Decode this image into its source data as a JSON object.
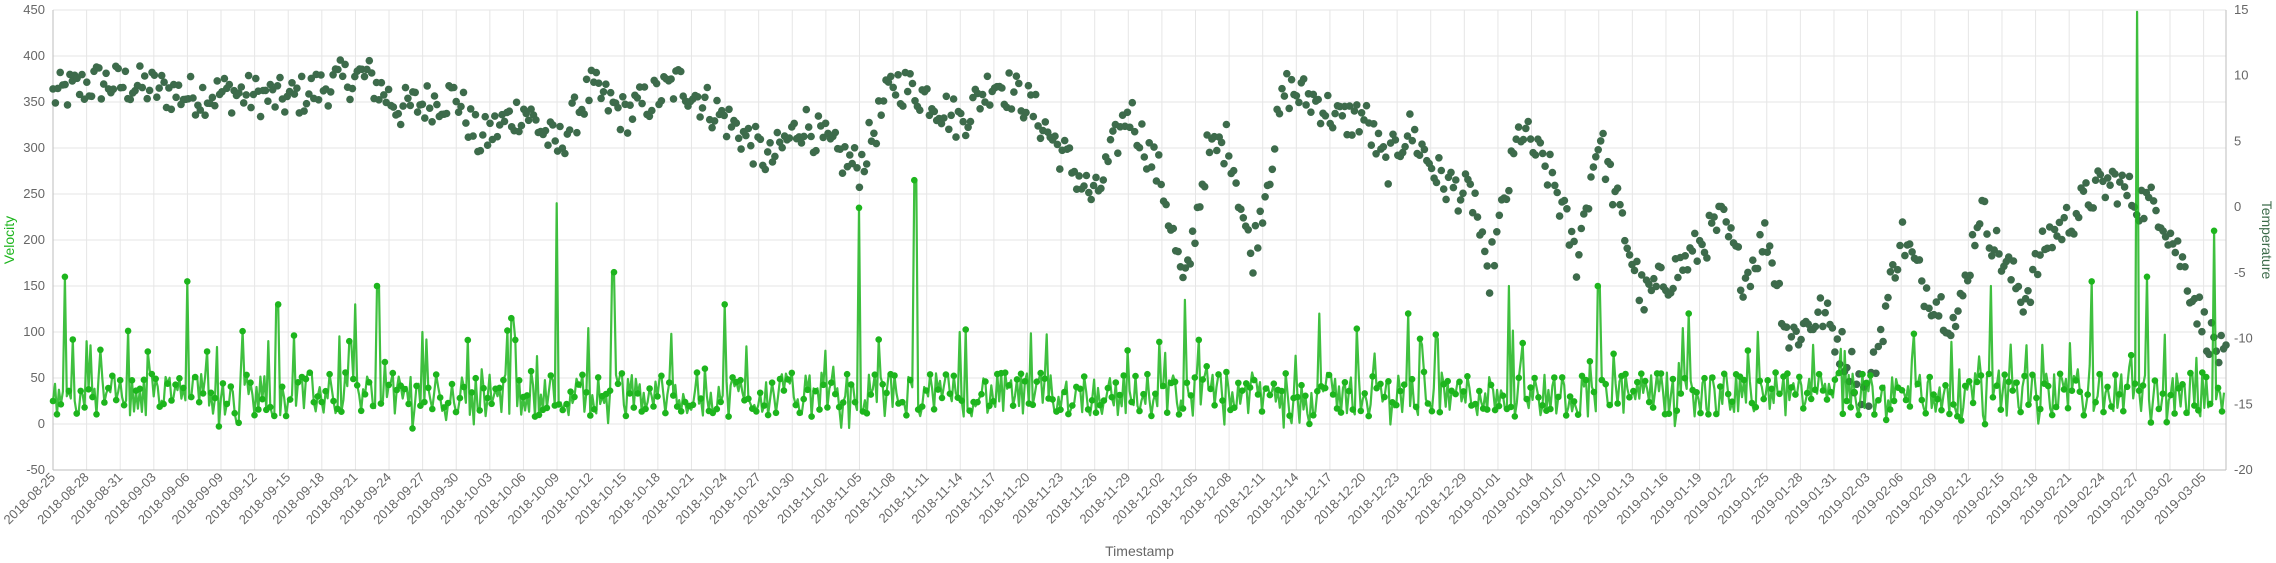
{
  "chart_data": {
    "type": "line",
    "title": "",
    "xlabel": "Timestamp",
    "ylabel": "Velocity",
    "y2label": "Temperature",
    "ylim": [
      -50,
      450
    ],
    "y2lim": [
      -20,
      15
    ],
    "yticks": [
      "450",
      "400",
      "350",
      "300",
      "250",
      "200",
      "150",
      "100",
      "50",
      "0",
      "-50"
    ],
    "y2ticks": [
      "15",
      "10",
      "5",
      "0",
      "-5",
      "-10",
      "-15",
      "-20"
    ],
    "x_start": "2018-08-25",
    "x_end": "2019-03-07",
    "x_tick_labels": [
      "2018-08-25",
      "2018-08-28",
      "2018-08-31",
      "2018-09-03",
      "2018-09-06",
      "2018-09-09",
      "2018-09-12",
      "2018-09-15",
      "2018-09-18",
      "2018-09-21",
      "2018-09-24",
      "2018-09-27",
      "2018-09-30",
      "2018-10-03",
      "2018-10-06",
      "2018-10-09",
      "2018-10-12",
      "2018-10-15",
      "2018-10-18",
      "2018-10-21",
      "2018-10-24",
      "2018-10-27",
      "2018-10-30",
      "2018-11-02",
      "2018-11-05",
      "2018-11-08",
      "2018-11-11",
      "2018-11-14",
      "2018-11-17",
      "2018-11-20",
      "2018-11-23",
      "2018-11-26",
      "2018-11-29",
      "2018-12-02",
      "2018-12-05",
      "2018-12-08",
      "2018-12-11",
      "2018-12-14",
      "2018-12-17",
      "2018-12-20",
      "2018-12-23",
      "2018-12-26",
      "2018-12-29",
      "2019-01-01",
      "2019-01-04",
      "2019-01-07",
      "2019-01-10",
      "2019-01-13",
      "2019-01-16",
      "2019-01-19",
      "2019-01-22",
      "2019-01-25",
      "2019-01-28",
      "2019-01-31",
      "2019-02-03",
      "2019-02-06",
      "2019-02-09",
      "2019-02-12",
      "2019-02-15",
      "2019-02-18",
      "2019-02-21",
      "2019-02-24",
      "2019-02-27",
      "2019-03-02",
      "2019-03-05"
    ],
    "series": [
      {
        "name": "",
        "axis": "left",
        "style": "line-with-points",
        "color": "#1db51d",
        "keypoints": [
          [
            "2018-08-25",
            25
          ],
          [
            "2018-08-26",
            160
          ],
          [
            "2018-08-27",
            25
          ],
          [
            "2018-08-28",
            90
          ],
          [
            "2018-09-03",
            30
          ],
          [
            "2018-09-06",
            155
          ],
          [
            "2018-09-08",
            20
          ],
          [
            "2018-09-14",
            130
          ],
          [
            "2018-09-21",
            130
          ],
          [
            "2018-09-23",
            150
          ],
          [
            "2018-09-27",
            100
          ],
          [
            "2018-10-05",
            115
          ],
          [
            "2018-10-09",
            240
          ],
          [
            "2018-10-14",
            165
          ],
          [
            "2018-10-18",
            30
          ],
          [
            "2018-10-24",
            130
          ],
          [
            "2018-11-05",
            235
          ],
          [
            "2018-11-10",
            265
          ],
          [
            "2018-11-14",
            100
          ],
          [
            "2018-11-29",
            80
          ],
          [
            "2018-12-04",
            135
          ],
          [
            "2018-12-16",
            120
          ],
          [
            "2018-12-24",
            120
          ],
          [
            "2019-01-02",
            150
          ],
          [
            "2019-01-10",
            150
          ],
          [
            "2019-01-18",
            120
          ],
          [
            "2019-02-14",
            150
          ],
          [
            "2019-02-23",
            155
          ],
          [
            "2019-02-27",
            448
          ],
          [
            "2019-02-28",
            160
          ],
          [
            "2019-03-06",
            210
          ],
          [
            "2019-03-07",
            60
          ]
        ]
      },
      {
        "name": "",
        "axis": "right",
        "style": "scatter",
        "color": "#3d6b4b",
        "keypoints": [
          [
            "2018-08-25",
            8.5
          ],
          [
            "2018-08-29",
            9.5
          ],
          [
            "2018-09-02",
            9.2
          ],
          [
            "2018-09-06",
            8.5
          ],
          [
            "2018-09-10",
            8.7
          ],
          [
            "2018-09-15",
            8.2
          ],
          [
            "2018-09-20",
            9.7
          ],
          [
            "2018-09-22",
            10.0
          ],
          [
            "2018-09-25",
            7.5
          ],
          [
            "2018-09-30",
            8.5
          ],
          [
            "2018-10-02",
            5.0
          ],
          [
            "2018-10-06",
            7.5
          ],
          [
            "2018-10-09",
            4.5
          ],
          [
            "2018-10-12",
            9.0
          ],
          [
            "2018-10-15",
            7.0
          ],
          [
            "2018-10-20",
            9.5
          ],
          [
            "2018-10-25",
            6.0
          ],
          [
            "2018-10-28",
            3.5
          ],
          [
            "2018-10-31",
            6.5
          ],
          [
            "2018-11-03",
            4.0
          ],
          [
            "2018-11-05",
            3.0
          ],
          [
            "2018-11-08",
            9.5
          ],
          [
            "2018-11-11",
            8.5
          ],
          [
            "2018-11-14",
            6.5
          ],
          [
            "2018-11-17",
            9.7
          ],
          [
            "2018-11-20",
            8.0
          ],
          [
            "2018-11-24",
            3.0
          ],
          [
            "2018-11-26",
            0.5
          ],
          [
            "2018-11-29",
            7.5
          ],
          [
            "2018-12-02",
            2.0
          ],
          [
            "2018-12-04",
            -6.5
          ],
          [
            "2018-12-06",
            4.0
          ],
          [
            "2018-12-08",
            5.0
          ],
          [
            "2018-12-10",
            -4.0
          ],
          [
            "2018-12-13",
            9.0
          ],
          [
            "2018-12-16",
            8.0
          ],
          [
            "2018-12-18",
            6.5
          ],
          [
            "2018-12-20",
            7.0
          ],
          [
            "2018-12-22",
            3.0
          ],
          [
            "2018-12-24",
            6.0
          ],
          [
            "2018-12-27",
            2.0
          ],
          [
            "2018-12-30",
            0.5
          ],
          [
            "2018-12-31",
            -6.0
          ],
          [
            "2019-01-03",
            6.0
          ],
          [
            "2019-01-06",
            2.0
          ],
          [
            "2019-01-08",
            -4.0
          ],
          [
            "2019-01-10",
            5.5
          ],
          [
            "2019-01-12",
            -1.0
          ],
          [
            "2019-01-14",
            -7.0
          ],
          [
            "2019-01-18",
            -4.0
          ],
          [
            "2019-01-21",
            -1.0
          ],
          [
            "2019-01-23",
            -5.5
          ],
          [
            "2019-01-25",
            -2.0
          ],
          [
            "2019-01-27",
            -10.0
          ],
          [
            "2019-01-30",
            -8.0
          ],
          [
            "2019-02-03",
            -14.5
          ],
          [
            "2019-02-06",
            -2.0
          ],
          [
            "2019-02-08",
            -6.0
          ],
          [
            "2019-02-11",
            -9.0
          ],
          [
            "2019-02-13",
            0.0
          ],
          [
            "2019-02-15",
            -4.0
          ],
          [
            "2019-02-17",
            -7.0
          ],
          [
            "2019-02-19",
            -2.5
          ],
          [
            "2019-02-21",
            -1.0
          ],
          [
            "2019-02-23",
            1.0
          ],
          [
            "2019-02-25",
            2.0
          ],
          [
            "2019-02-27",
            0.5
          ],
          [
            "2019-03-01",
            0.0
          ],
          [
            "2019-03-03",
            -4.0
          ],
          [
            "2019-03-05",
            -9.0
          ],
          [
            "2019-03-07",
            -12.0
          ]
        ]
      }
    ]
  }
}
